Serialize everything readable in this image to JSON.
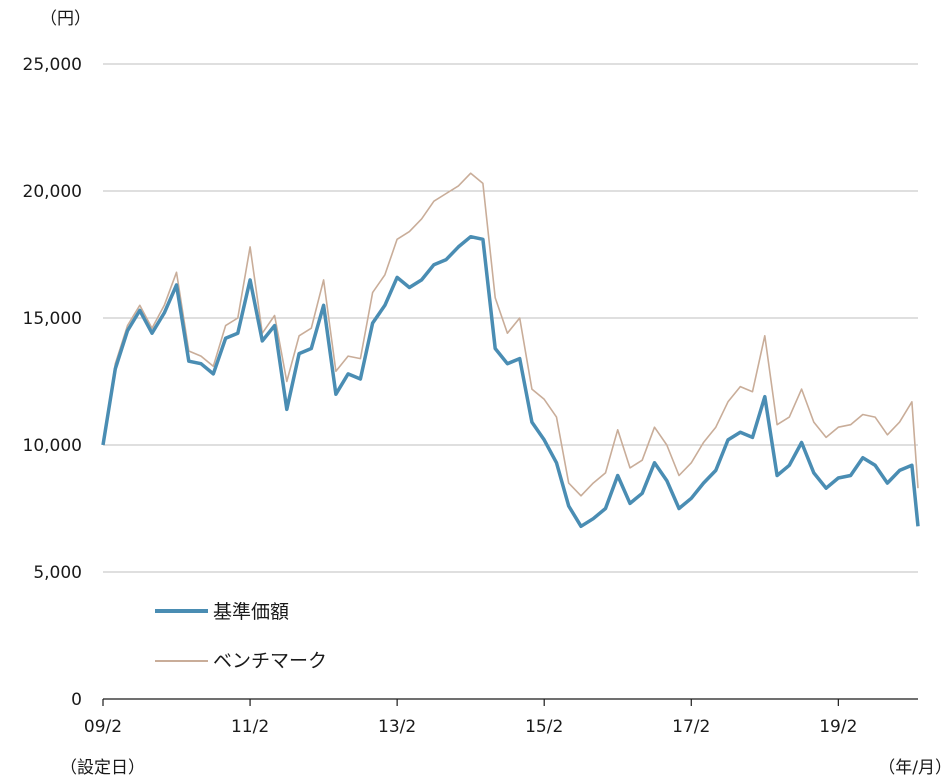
{
  "chart_data": {
    "type": "line",
    "y_unit": "（円）",
    "x_unit": "（年/月）",
    "x_start_note": "（設定日）",
    "ylim": [
      0,
      25000
    ],
    "yticks": [
      {
        "value": 0,
        "label": "0"
      },
      {
        "value": 5000,
        "label": "5,000"
      },
      {
        "value": 10000,
        "label": "10,000"
      },
      {
        "value": 15000,
        "label": "15,000"
      },
      {
        "value": 20000,
        "label": "20,000"
      },
      {
        "value": 25000,
        "label": "25,000"
      }
    ],
    "xlim": [
      "2009-02",
      "2020-03"
    ],
    "xticks": [
      "09/2",
      "11/2",
      "13/2",
      "15/2",
      "17/2",
      "19/2"
    ],
    "grid": true,
    "legend_position": "bottom-left",
    "colors": {
      "nav": "#4a8db3",
      "benchmark": "#c9ad99",
      "grid": "#bfbfbf",
      "axis": "#1a1a1a"
    },
    "x": [
      "2009-02",
      "2009-04",
      "2009-06",
      "2009-08",
      "2009-10",
      "2009-12",
      "2010-02",
      "2010-04",
      "2010-06",
      "2010-08",
      "2010-10",
      "2010-12",
      "2011-02",
      "2011-04",
      "2011-06",
      "2011-08",
      "2011-10",
      "2011-12",
      "2012-02",
      "2012-04",
      "2012-06",
      "2012-08",
      "2012-10",
      "2012-12",
      "2013-02",
      "2013-04",
      "2013-06",
      "2013-08",
      "2013-10",
      "2013-12",
      "2014-02",
      "2014-04",
      "2014-06",
      "2014-08",
      "2014-10",
      "2014-12",
      "2015-02",
      "2015-04",
      "2015-06",
      "2015-08",
      "2015-10",
      "2015-12",
      "2016-02",
      "2016-04",
      "2016-06",
      "2016-08",
      "2016-10",
      "2016-12",
      "2017-02",
      "2017-04",
      "2017-06",
      "2017-08",
      "2017-10",
      "2017-12",
      "2018-02",
      "2018-04",
      "2018-06",
      "2018-08",
      "2018-10",
      "2018-12",
      "2019-02",
      "2019-04",
      "2019-06",
      "2019-08",
      "2019-10",
      "2019-12",
      "2020-02",
      "2020-03"
    ],
    "series": [
      {
        "name": "基準価額",
        "values": [
          10000,
          13000,
          14500,
          15300,
          14400,
          15200,
          16300,
          13300,
          13200,
          12800,
          14200,
          14400,
          16500,
          14100,
          14700,
          11400,
          13600,
          13800,
          15500,
          12000,
          12800,
          12600,
          14800,
          15500,
          16600,
          16200,
          16500,
          17100,
          17300,
          17800,
          18200,
          18100,
          13800,
          13200,
          13400,
          10900,
          10200,
          9300,
          7600,
          6800,
          7100,
          7500,
          8800,
          7700,
          8100,
          9300,
          8600,
          7500,
          7900,
          8500,
          9000,
          10200,
          10500,
          10300,
          11900,
          8800,
          9200,
          10100,
          8900,
          8300,
          8700,
          8800,
          9500,
          9200,
          8500,
          9000,
          9200,
          6800
        ]
      },
      {
        "name": "ベンチマーク",
        "values": [
          10000,
          13200,
          14700,
          15500,
          14600,
          15500,
          16800,
          13700,
          13500,
          13100,
          14700,
          15000,
          17800,
          14400,
          15100,
          12500,
          14300,
          14600,
          16500,
          12900,
          13500,
          13400,
          16000,
          16700,
          18100,
          18400,
          18900,
          19600,
          19900,
          20200,
          20700,
          20300,
          15800,
          14400,
          15000,
          12200,
          11800,
          11100,
          8500,
          8000,
          8500,
          8900,
          10600,
          9100,
          9400,
          10700,
          10000,
          8800,
          9300,
          10100,
          10700,
          11700,
          12300,
          12100,
          14300,
          10800,
          11100,
          12200,
          10900,
          10300,
          10700,
          10800,
          11200,
          11100,
          10400,
          10900,
          11700,
          8300
        ]
      }
    ]
  }
}
